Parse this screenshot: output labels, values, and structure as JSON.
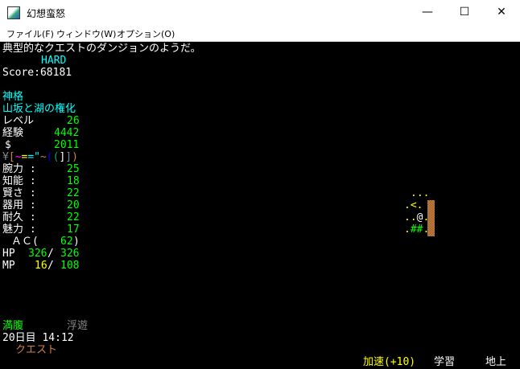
{
  "window": {
    "title": "幻想蛮怒",
    "minimize": "—",
    "maximize": "☐",
    "close": "✕"
  },
  "menu": [
    "ファイル(F)",
    "ウィンドウ(W)",
    "オプション(O)"
  ],
  "message": "典型的なクエストのダンジョンのようだ。",
  "difficulty": "HARD",
  "score": "Score:68181",
  "race": "神格",
  "class": "山坂と湖の権化",
  "level": {
    "label": "レベル",
    "value": "26"
  },
  "exp": {
    "label": "経験",
    "value": "4442"
  },
  "gold": {
    "label": "$",
    "value": "2011"
  },
  "equipment": [
    {
      "ch": "¥",
      "color": "#888888"
    },
    {
      "ch": "[",
      "color": "#d08040"
    },
    {
      "ch": "~",
      "color": "#ff00ff"
    },
    {
      "ch": "=",
      "color": "#ffff00"
    },
    {
      "ch": "=",
      "color": "#00ffff"
    },
    {
      "ch": "\"",
      "color": "#00ffff"
    },
    {
      "ch": "~",
      "color": "#d08040"
    },
    {
      "ch": "(",
      "color": "#0000ff"
    },
    {
      "ch": "(",
      "color": "#00aa66"
    },
    {
      "ch": "]",
      "color": "#ffffff"
    },
    {
      "ch": "]",
      "color": "#888888"
    },
    {
      "ch": ")",
      "color": "#d08040"
    }
  ],
  "stats": [
    {
      "label": "腕力 :",
      "value": "25"
    },
    {
      "label": "知能 :",
      "value": "18"
    },
    {
      "label": "賢さ :",
      "value": "22"
    },
    {
      "label": "器用 :",
      "value": "20"
    },
    {
      "label": "耐久 :",
      "value": "22"
    },
    {
      "label": "魅力 :",
      "value": "17"
    }
  ],
  "ac": {
    "label": "ＡＣ(",
    "value": "62",
    "close": ")"
  },
  "hp": {
    "label": "HP",
    "cur": "326",
    "max": "326"
  },
  "mp": {
    "label": "MP",
    "cur": "16",
    "max": "108"
  },
  "hunger": "満腹",
  "levitation": "浮遊",
  "time": "20日目 14:12",
  "location_type": "クエスト",
  "status_bar": {
    "speed": "加速(+10)",
    "study": "学習",
    "depth": "地上"
  },
  "map": [
    {
      "text": "...",
      "color": "#ffff00"
    },
    {
      "text": ".<.",
      "color": "#ffff00"
    },
    {
      "text": "..@.",
      "color": "#ffff00"
    },
    {
      "text": ".##.",
      "color": "#ffff00"
    }
  ]
}
